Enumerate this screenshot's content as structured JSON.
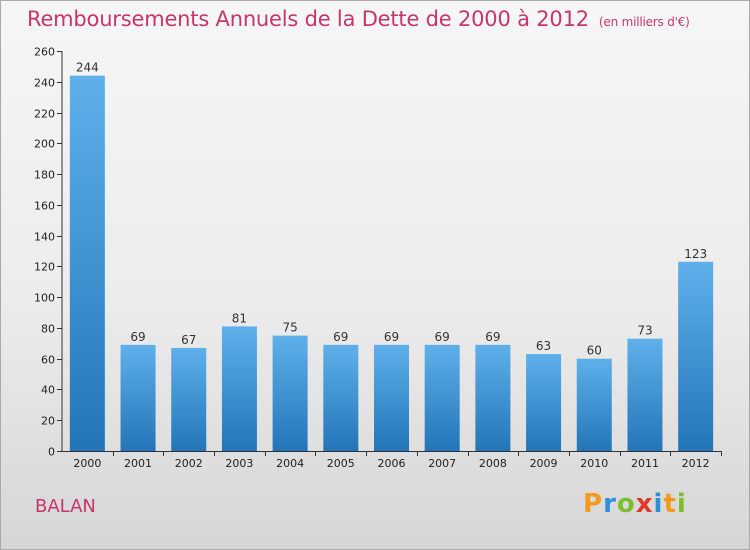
{
  "header": {
    "title": "Remboursements Annuels de la Dette de 2000 à 2012",
    "unit": "(en milliers d'€)"
  },
  "footer": {
    "place": "BALAN",
    "logo": {
      "letters": [
        "P",
        "r",
        "o",
        "x",
        "i",
        "t",
        "i"
      ],
      "colors": [
        "#f39a1e",
        "#2e8fd8",
        "#7bbf2c",
        "#e0392b",
        "#2e8fd8",
        "#f39a1e",
        "#7bbf2c"
      ]
    }
  },
  "chart_data": {
    "type": "bar",
    "title": "Remboursements Annuels de la Dette de 2000 à 2012",
    "subtitle": "(en milliers d'€)",
    "categories": [
      "2000",
      "2001",
      "2002",
      "2003",
      "2004",
      "2005",
      "2006",
      "2007",
      "2008",
      "2009",
      "2010",
      "2011",
      "2012"
    ],
    "values": [
      244,
      69,
      67,
      81,
      75,
      69,
      69,
      69,
      69,
      63,
      60,
      73,
      123
    ],
    "ylim": [
      0,
      260
    ],
    "ytick_step": 20,
    "grid": false,
    "bar_color_top": "#5fb0ea",
    "bar_color_bottom": "#2275b8"
  }
}
